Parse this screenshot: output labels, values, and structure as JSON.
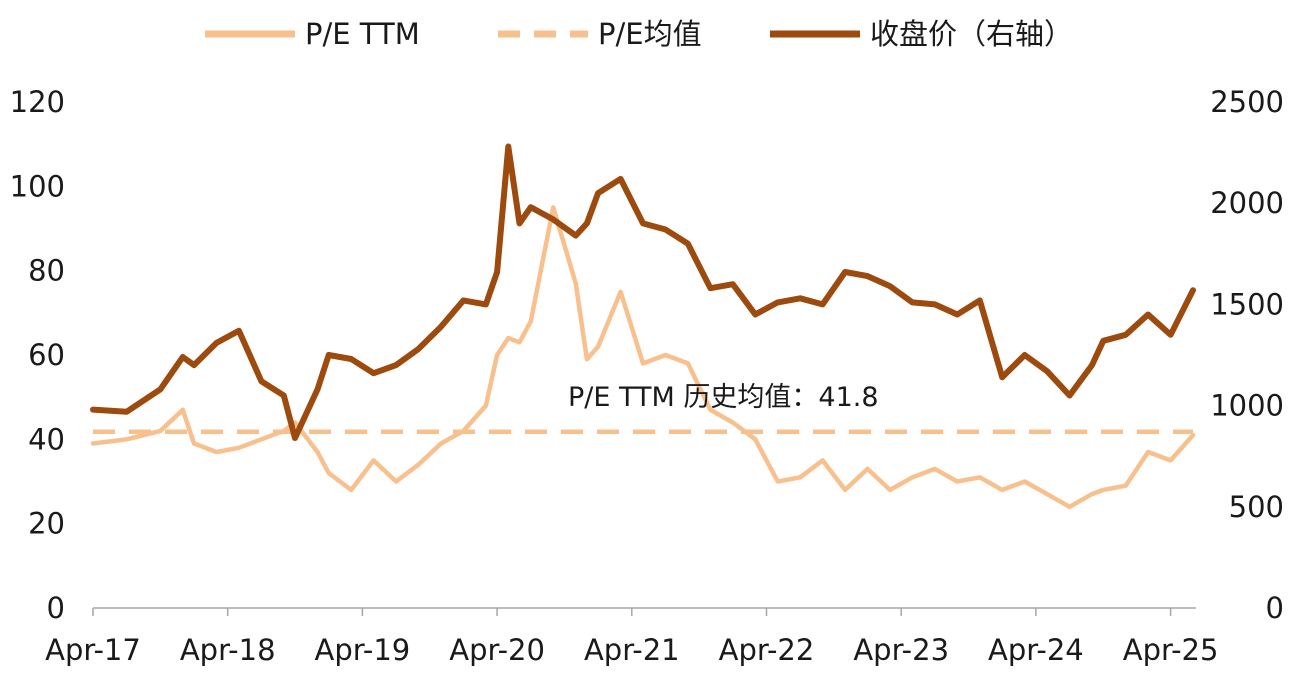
{
  "chart_data": {
    "type": "line",
    "title": "",
    "xlabel": "",
    "ylabel": "",
    "y2label": "",
    "x_ticks": [
      "Apr-17",
      "Apr-18",
      "Apr-19",
      "Apr-20",
      "Apr-21",
      "Apr-22",
      "Apr-23",
      "Apr-24",
      "Apr-25"
    ],
    "x_range": [
      "2017-04",
      "2025-06"
    ],
    "ylim": [
      0,
      120
    ],
    "y_ticks": [
      0,
      20,
      40,
      60,
      80,
      100,
      120
    ],
    "y2lim": [
      0,
      2500
    ],
    "y2_ticks": [
      0,
      500,
      1000,
      1500,
      2000,
      2500
    ],
    "grid": false,
    "legend_position": "top",
    "legend": [
      "P/E TTM",
      "P/E均值",
      "收盘价（右轴）"
    ],
    "annotation": "P/E TTM 历史均值：41.8",
    "colors": {
      "pe": "#f8c08d",
      "pe_mean": "#f8c08d",
      "price": "#9c4a0e",
      "axis": "#a6a6a6"
    },
    "series": [
      {
        "name": "P/E TTM",
        "axis": "left",
        "style": "solid",
        "x": [
          "2017-04",
          "2017-07",
          "2017-10",
          "2017-12",
          "2018-01",
          "2018-03",
          "2018-05",
          "2018-07",
          "2018-09",
          "2018-10",
          "2018-12",
          "2019-01",
          "2019-03",
          "2019-05",
          "2019-07",
          "2019-09",
          "2019-11",
          "2020-01",
          "2020-03",
          "2020-04",
          "2020-05",
          "2020-06",
          "2020-07",
          "2020-09",
          "2020-11",
          "2020-12",
          "2021-01",
          "2021-03",
          "2021-05",
          "2021-07",
          "2021-09",
          "2021-11",
          "2022-01",
          "2022-03",
          "2022-05",
          "2022-07",
          "2022-09",
          "2022-11",
          "2023-01",
          "2023-03",
          "2023-05",
          "2023-07",
          "2023-09",
          "2023-11",
          "2024-01",
          "2024-03",
          "2024-05",
          "2024-07",
          "2024-09",
          "2024-10",
          "2024-12",
          "2025-02",
          "2025-04",
          "2025-06"
        ],
        "values": [
          39,
          40,
          42,
          47,
          39,
          37,
          38,
          40,
          42,
          44,
          37,
          32,
          28,
          35,
          30,
          34,
          39,
          42,
          48,
          60,
          64,
          63,
          68,
          95,
          77,
          59,
          62,
          75,
          58,
          60,
          58,
          47,
          44,
          40,
          30,
          31,
          35,
          28,
          33,
          28,
          31,
          33,
          30,
          31,
          28,
          30,
          27,
          24,
          27,
          28,
          29,
          37,
          35,
          41
        ]
      },
      {
        "name": "P/E均值",
        "axis": "left",
        "style": "dashed",
        "x": [
          "2017-04",
          "2025-06"
        ],
        "values": [
          41.8,
          41.8
        ]
      },
      {
        "name": "收盘价（右轴）",
        "axis": "right",
        "style": "solid",
        "x": [
          "2017-04",
          "2017-07",
          "2017-10",
          "2017-12",
          "2018-01",
          "2018-03",
          "2018-05",
          "2018-07",
          "2018-09",
          "2018-10",
          "2018-12",
          "2019-01",
          "2019-03",
          "2019-05",
          "2019-07",
          "2019-09",
          "2019-11",
          "2020-01",
          "2020-03",
          "2020-04",
          "2020-05",
          "2020-06",
          "2020-07",
          "2020-09",
          "2020-11",
          "2020-12",
          "2021-01",
          "2021-03",
          "2021-05",
          "2021-07",
          "2021-09",
          "2021-11",
          "2022-01",
          "2022-03",
          "2022-05",
          "2022-07",
          "2022-09",
          "2022-11",
          "2023-01",
          "2023-03",
          "2023-05",
          "2023-07",
          "2023-09",
          "2023-11",
          "2024-01",
          "2024-03",
          "2024-05",
          "2024-07",
          "2024-09",
          "2024-10",
          "2024-12",
          "2025-02",
          "2025-04",
          "2025-06"
        ],
        "values": [
          980,
          970,
          1080,
          1240,
          1200,
          1310,
          1370,
          1120,
          1050,
          840,
          1080,
          1250,
          1230,
          1160,
          1200,
          1280,
          1390,
          1520,
          1500,
          1660,
          2280,
          1900,
          1980,
          1920,
          1840,
          1900,
          2050,
          2120,
          1900,
          1870,
          1800,
          1580,
          1600,
          1450,
          1510,
          1530,
          1500,
          1660,
          1640,
          1590,
          1510,
          1500,
          1450,
          1520,
          1140,
          1250,
          1170,
          1050,
          1200,
          1320,
          1350,
          1450,
          1350,
          1570
        ]
      }
    ]
  }
}
